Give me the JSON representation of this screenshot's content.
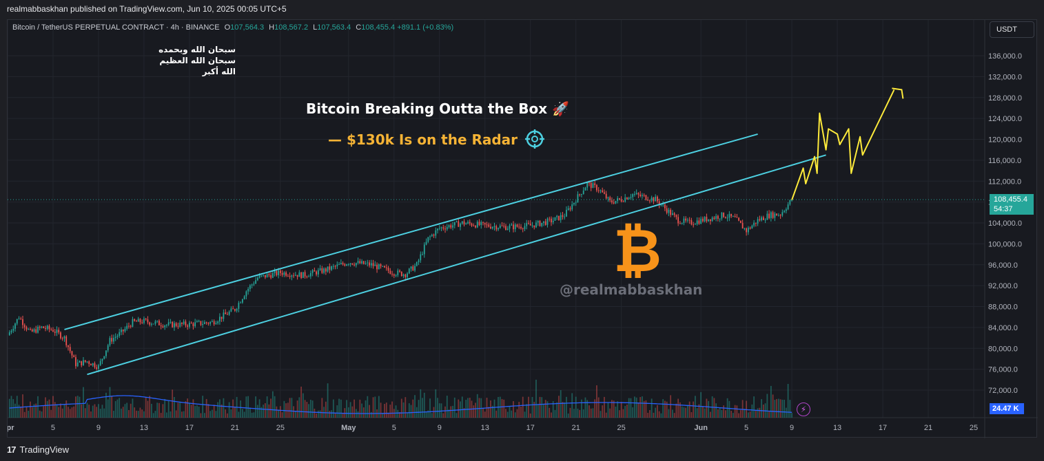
{
  "publisher": "realmabbaskhan published on TradingView.com, Jun 10, 2025 00:05 UTC+5",
  "footer": {
    "logo": "17",
    "brand": "TradingView"
  },
  "legend": {
    "symbol": "Bitcoin / TetherUS PERPETUAL CONTRACT · 4h · BINANCE",
    "o_key": "O",
    "o_val": "107,564.3",
    "h_key": "H",
    "h_val": "108,567.2",
    "l_key": "L",
    "l_val": "107,563.4",
    "c_key": "C",
    "c_val": "108,455.4",
    "chg": "+891.1 (+0.83%)"
  },
  "currency_button": "USDT",
  "price_tag": {
    "price": "108,455.4",
    "countdown": "54:37"
  },
  "volume_tag": "24.47 K",
  "annotations": {
    "arabic_lines": [
      "سبحان الله وبحمده",
      "سبحان الله العظيم",
      "الله أكبر"
    ],
    "headline": "Bitcoin Breaking Outta the Box 🚀",
    "subline": "— $130k Is on the Radar",
    "watermark": "@realmabbaskhan",
    "btc_symbol": "₿"
  },
  "colors": {
    "up": "#26a69a",
    "down": "#ef5350",
    "channel": "#4dd0e1",
    "projection": "#ffeb3b",
    "volume_ma": "#2962ff",
    "accent": "#f7931a"
  },
  "chart_data": {
    "type": "candlestick",
    "timeframe": "4h",
    "y_axis": {
      "range": [
        68000,
        140000
      ],
      "ticks": [
        72000,
        76000,
        80000,
        84000,
        88000,
        92000,
        96000,
        100000,
        104000,
        108000,
        112000,
        116000,
        120000,
        124000,
        128000,
        132000,
        136000
      ],
      "tick_labels": [
        "72,000.0",
        "76,000.0",
        "80,000.0",
        "84,000.0",
        "88,000.0",
        "92,000.0",
        "96,000.0",
        "100,000.0",
        "104,000.0",
        "108,000.0",
        "112,000.0",
        "116,000.0",
        "120,000.0",
        "124,000.0",
        "128,000.0",
        "132,000.0",
        "136,000.0"
      ]
    },
    "x_axis": {
      "range": [
        "2025-04-01",
        "2025-06-26"
      ],
      "ticks": [
        "2025-04-01",
        "2025-04-05",
        "2025-04-09",
        "2025-04-13",
        "2025-04-17",
        "2025-04-21",
        "2025-04-25",
        "2025-05-01",
        "2025-05-05",
        "2025-05-09",
        "2025-05-13",
        "2025-05-17",
        "2025-05-21",
        "2025-05-25",
        "2025-06-01",
        "2025-06-05",
        "2025-06-09",
        "2025-06-13",
        "2025-06-17",
        "2025-06-21",
        "2025-06-25"
      ],
      "tick_labels": [
        "Apr",
        "5",
        "9",
        "13",
        "17",
        "21",
        "25",
        "May",
        "5",
        "9",
        "13",
        "17",
        "21",
        "25",
        "Jun",
        "5",
        "9",
        "13",
        "17",
        "21",
        "25"
      ]
    },
    "price_path": [
      [
        "2025-04-01",
        82500
      ],
      [
        "2025-04-02",
        86000
      ],
      [
        "2025-04-03",
        83000
      ],
      [
        "2025-04-04",
        84000
      ],
      [
        "2025-04-05",
        83500
      ],
      [
        "2025-04-06",
        82000
      ],
      [
        "2025-04-07",
        77000
      ],
      [
        "2025-04-08",
        77500
      ],
      [
        "2025-04-09",
        76500
      ],
      [
        "2025-04-10",
        81500
      ],
      [
        "2025-04-11",
        83000
      ],
      [
        "2025-04-12",
        85000
      ],
      [
        "2025-04-13",
        85200
      ],
      [
        "2025-04-15",
        84500
      ],
      [
        "2025-04-17",
        84600
      ],
      [
        "2025-04-19",
        85000
      ],
      [
        "2025-04-21",
        87500
      ],
      [
        "2025-04-22",
        91000
      ],
      [
        "2025-04-23",
        93500
      ],
      [
        "2025-04-25",
        94500
      ],
      [
        "2025-04-27",
        94000
      ],
      [
        "2025-04-29",
        95000
      ],
      [
        "2025-05-01",
        96500
      ],
      [
        "2025-05-03",
        96000
      ],
      [
        "2025-05-05",
        94500
      ],
      [
        "2025-05-06",
        94200
      ],
      [
        "2025-05-07",
        96000
      ],
      [
        "2025-05-08",
        101000
      ],
      [
        "2025-05-09",
        103000
      ],
      [
        "2025-05-11",
        104000
      ],
      [
        "2025-05-13",
        103500
      ],
      [
        "2025-05-15",
        103200
      ],
      [
        "2025-05-17",
        103500
      ],
      [
        "2025-05-19",
        104500
      ],
      [
        "2025-05-20",
        105500
      ],
      [
        "2025-05-21",
        108500
      ],
      [
        "2025-05-22",
        111500
      ],
      [
        "2025-05-23",
        110500
      ],
      [
        "2025-05-24",
        108000
      ],
      [
        "2025-05-25",
        108500
      ],
      [
        "2025-05-26",
        109500
      ],
      [
        "2025-05-27",
        109000
      ],
      [
        "2025-05-28",
        108500
      ],
      [
        "2025-05-29",
        106500
      ],
      [
        "2025-05-30",
        104500
      ],
      [
        "2025-05-31",
        104000
      ],
      [
        "2025-06-01",
        104500
      ],
      [
        "2025-06-02",
        105000
      ],
      [
        "2025-06-03",
        105500
      ],
      [
        "2025-06-04",
        104800
      ],
      [
        "2025-06-05",
        102500
      ],
      [
        "2025-06-06",
        104500
      ],
      [
        "2025-06-07",
        105500
      ],
      [
        "2025-06-08",
        105700
      ],
      [
        "2025-06-09",
        108455.4
      ]
    ],
    "channel": {
      "upper": [
        [
          "2025-04-06",
          83600
        ],
        [
          "2025-06-06",
          121000
        ]
      ],
      "lower": [
        [
          "2025-04-08",
          75000
        ],
        [
          "2025-06-12",
          117000
        ]
      ]
    },
    "projection_path": [
      [
        "2025-06-09",
        108400
      ],
      [
        "2025-06-10",
        114500
      ],
      [
        "2025-06-10",
        111500
      ],
      [
        "2025-06-11",
        116700
      ],
      [
        "2025-06-11",
        113500
      ],
      [
        "2025-06-11",
        125000
      ],
      [
        "2025-06-12",
        118000
      ],
      [
        "2025-06-12",
        122000
      ],
      [
        "2025-06-13",
        121000
      ],
      [
        "2025-06-13",
        119000
      ],
      [
        "2025-06-14",
        122000
      ],
      [
        "2025-06-14",
        113500
      ],
      [
        "2025-06-15",
        120500
      ],
      [
        "2025-06-15",
        117000
      ],
      [
        "2025-06-18",
        129500
      ]
    ]
  }
}
